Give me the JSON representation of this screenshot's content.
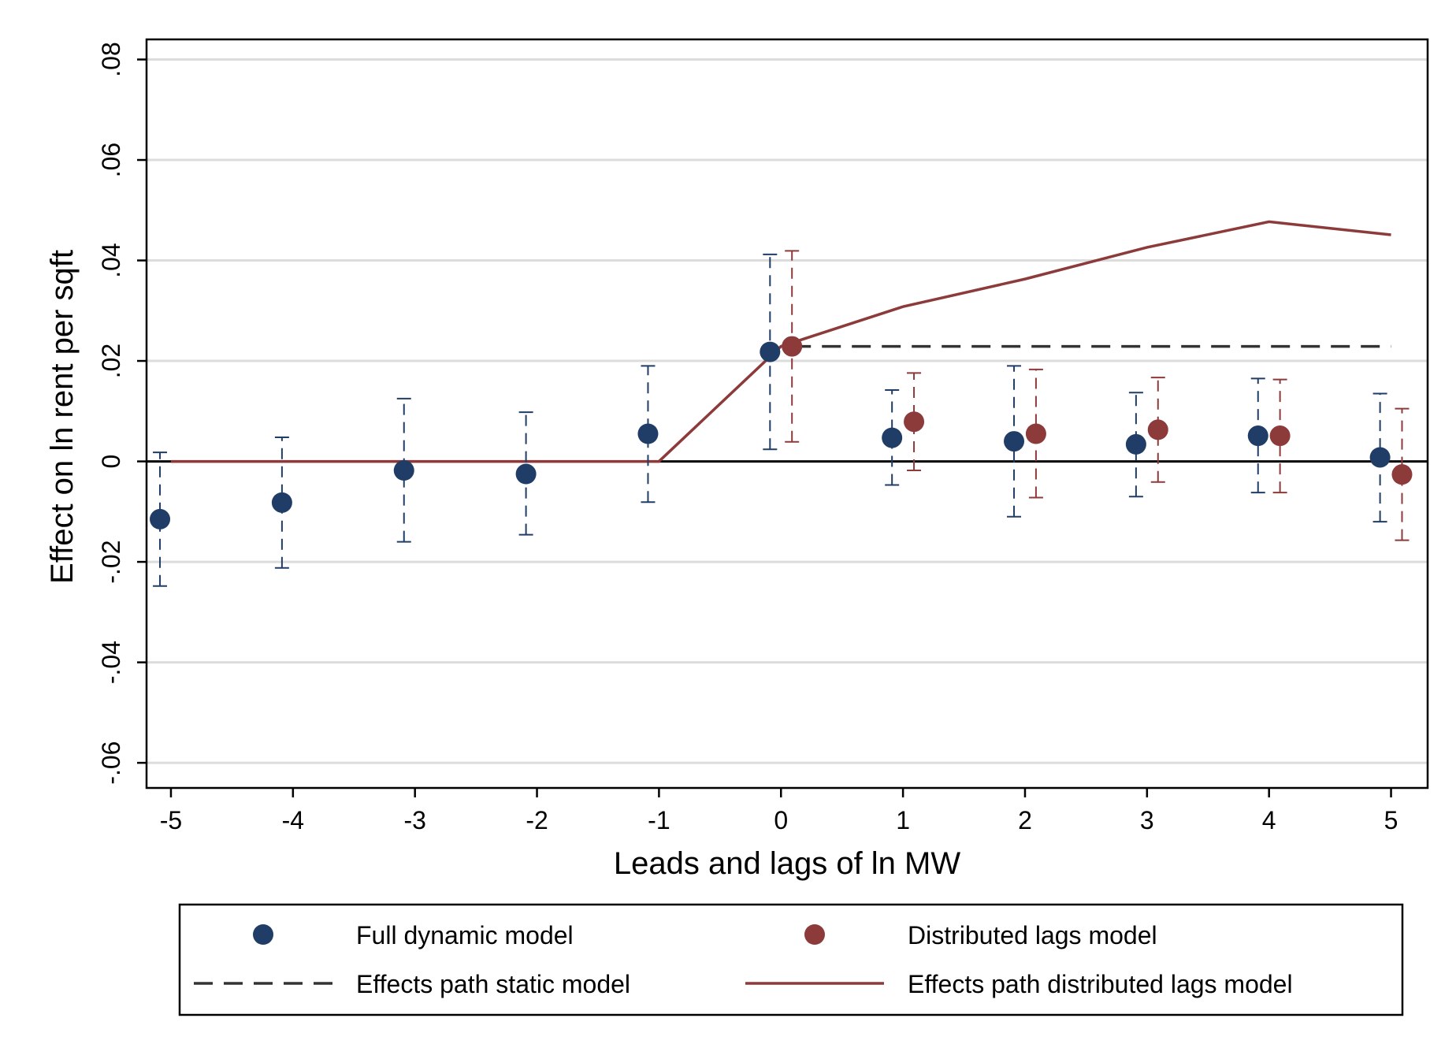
{
  "chart_data": {
    "type": "scatter",
    "xlabel": "Leads and lags of ln MW",
    "ylabel": "Effect on ln rent per sqft",
    "xlim": [
      -5.2,
      5.3
    ],
    "ylim": [
      -0.065,
      0.084
    ],
    "x_ticks": [
      -5,
      -4,
      -3,
      -2,
      -1,
      0,
      1,
      2,
      3,
      4,
      5
    ],
    "x_tick_labels": [
      "-5",
      "-4",
      "-3",
      "-2",
      "-1",
      "0",
      "1",
      "2",
      "3",
      "4",
      "5"
    ],
    "y_ticks": [
      -0.06,
      -0.04,
      -0.02,
      0,
      0.02,
      0.04,
      0.06,
      0.08
    ],
    "y_tick_labels": [
      "-.06",
      "-.04",
      "-.02",
      "0",
      ".02",
      ".04",
      ".06",
      ".08"
    ],
    "grid": true,
    "legend_position": "bottom",
    "series": [
      {
        "name": "Full dynamic model",
        "kind": "points",
        "color": "#1f3d66",
        "x": [
          -5,
          -4,
          -3,
          -2,
          -1,
          0,
          1,
          2,
          3,
          4,
          5
        ],
        "y": [
          -0.0115,
          -0.0082,
          -0.0018,
          -0.0025,
          0.0055,
          0.0218,
          0.0047,
          0.004,
          0.0034,
          0.0051,
          0.0008
        ],
        "ci_low": [
          -0.0248,
          -0.0212,
          -0.016,
          -0.0146,
          -0.0081,
          0.0024,
          -0.0047,
          -0.011,
          -0.007,
          -0.0062,
          -0.012
        ],
        "ci_high": [
          0.0018,
          0.0048,
          0.0125,
          0.0098,
          0.019,
          0.0412,
          0.0142,
          0.019,
          0.0137,
          0.0165,
          0.0135
        ]
      },
      {
        "name": "Distributed lags model",
        "kind": "points",
        "color": "#8c3a3a",
        "x": [
          0,
          1,
          2,
          3,
          4,
          5
        ],
        "y": [
          0.0229,
          0.0079,
          0.0055,
          0.0063,
          0.0051,
          -0.0026
        ],
        "ci_low": [
          0.0039,
          -0.0018,
          -0.0072,
          -0.0041,
          -0.0062,
          -0.0157
        ],
        "ci_high": [
          0.0419,
          0.0176,
          0.0183,
          0.0167,
          0.0163,
          0.0105
        ]
      },
      {
        "name": "Effects path static model",
        "kind": "line",
        "style": "dashed",
        "color": "#333333",
        "x": [
          0,
          5
        ],
        "y": [
          0.0229,
          0.0229
        ]
      },
      {
        "name": "Effects path distributed lags model",
        "kind": "line",
        "style": "solid",
        "color": "#8c3a3a",
        "x": [
          -5,
          -1,
          0,
          1,
          2,
          3,
          4,
          5
        ],
        "y": [
          0,
          0,
          0.0229,
          0.0308,
          0.0363,
          0.0426,
          0.0477,
          0.0451
        ]
      }
    ],
    "legend": [
      {
        "label": "Full dynamic model",
        "symbol": "marker",
        "color": "#1f3d66"
      },
      {
        "label": "Distributed lags model",
        "symbol": "marker",
        "color": "#8c3a3a"
      },
      {
        "label": "Effects path static model",
        "symbol": "dash",
        "color": "#333333"
      },
      {
        "label": "Effects path distributed lags model",
        "symbol": "line",
        "color": "#8c3a3a"
      }
    ]
  }
}
